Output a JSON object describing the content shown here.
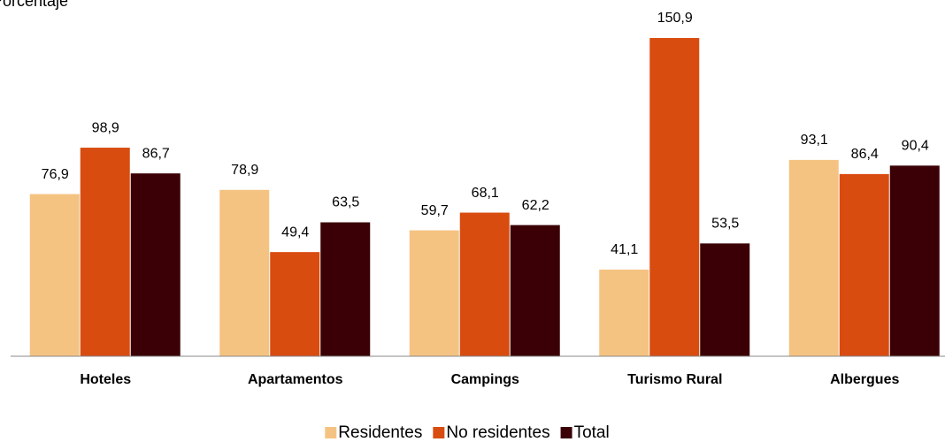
{
  "chart_data": {
    "type": "bar",
    "title": "Porcentaje",
    "categories": [
      "Hoteles",
      "Apartamentos",
      "Campings",
      "Turismo Rural",
      "Albergues"
    ],
    "series": [
      {
        "name": "Residentes",
        "color": "#f5c381",
        "values": [
          76.9,
          78.9,
          59.7,
          41.1,
          93.1
        ],
        "value_labels": [
          "76,9",
          "78,9",
          "59,7",
          "41,1",
          "93,1"
        ]
      },
      {
        "name": "No residentes",
        "color": "#d84c10",
        "values": [
          98.9,
          49.4,
          68.1,
          150.9,
          86.4
        ],
        "value_labels": [
          "98,9",
          "49,4",
          "68,1",
          "150,9",
          "86,4"
        ]
      },
      {
        "name": "Total",
        "color": "#3a0005",
        "values": [
          86.7,
          63.5,
          62.2,
          53.5,
          90.4
        ],
        "value_labels": [
          "86,7",
          "63,5",
          "62,2",
          "53,5",
          "90,4"
        ]
      }
    ],
    "ylim": [
      0,
      160
    ],
    "legend": "bottom"
  }
}
